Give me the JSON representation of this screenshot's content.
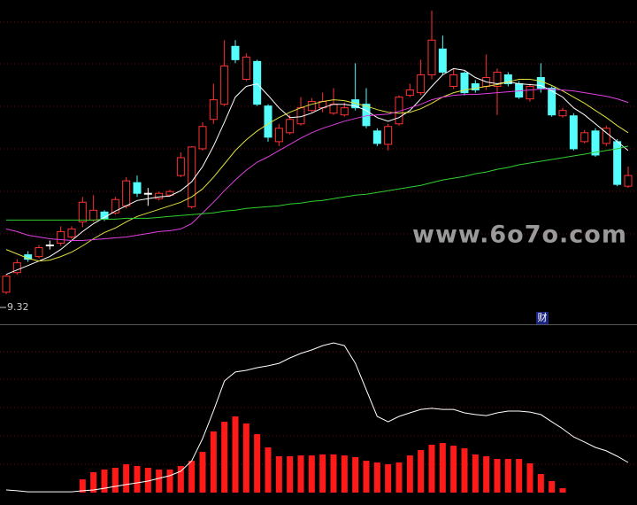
{
  "chart_data": [
    {
      "type": "candlestick",
      "up_color": "#ff3232",
      "down_color": "#54fcfc",
      "flat_color": "#ffffff",
      "ylim": [
        9.0,
        12.6
      ],
      "low_label": 9.32,
      "marker_label": "财",
      "open": [
        9.32,
        9.54,
        9.74,
        9.72,
        9.85,
        9.87,
        9.94,
        10.11,
        10.13,
        10.22,
        10.21,
        10.29,
        10.55,
        10.43,
        10.37,
        10.41,
        10.63,
        10.28,
        10.93,
        11.26,
        11.43,
        12.08,
        11.71,
        11.91,
        11.41,
        11.01,
        11.11,
        11.21,
        11.36,
        11.39,
        11.33,
        11.31,
        11.48,
        11.43,
        11.13,
        10.98,
        11.21,
        11.53,
        11.56,
        11.76,
        12.05,
        11.63,
        11.78,
        11.66,
        11.63,
        11.63,
        11.76,
        11.66,
        11.49,
        11.73,
        11.61,
        11.3,
        11.3,
        11.01,
        11.13,
        10.99,
        11.01,
        10.51
      ],
      "high": [
        9.52,
        9.69,
        9.78,
        9.85,
        9.9,
        10.06,
        10.06,
        10.39,
        10.41,
        10.24,
        10.39,
        10.61,
        10.63,
        10.49,
        10.45,
        10.47,
        10.89,
        10.96,
        11.23,
        11.66,
        12.15,
        12.15,
        12.0,
        11.93,
        11.43,
        11.21,
        11.31,
        11.51,
        11.5,
        11.56,
        11.61,
        11.45,
        11.89,
        11.61,
        11.16,
        11.21,
        11.53,
        11.66,
        11.93,
        12.48,
        12.2,
        11.83,
        11.8,
        11.7,
        11.99,
        11.83,
        11.79,
        11.69,
        11.66,
        11.89,
        11.63,
        11.39,
        11.33,
        11.14,
        11.16,
        11.19,
        11.04,
        10.73
      ],
      "low": [
        9.3,
        9.52,
        9.66,
        9.7,
        9.8,
        9.84,
        9.92,
        10.05,
        10.11,
        10.12,
        10.19,
        10.26,
        10.39,
        10.29,
        10.35,
        10.39,
        10.61,
        10.26,
        10.91,
        11.21,
        11.41,
        11.89,
        11.69,
        11.41,
        11.01,
        10.96,
        11.09,
        11.19,
        11.34,
        11.34,
        11.31,
        11.29,
        11.36,
        11.16,
        10.96,
        10.91,
        11.19,
        11.51,
        11.53,
        11.71,
        11.76,
        11.6,
        11.53,
        11.56,
        11.59,
        11.31,
        11.63,
        11.49,
        11.46,
        11.56,
        11.29,
        11.28,
        10.91,
        10.99,
        10.84,
        10.96,
        10.51,
        10.49
      ],
      "close": [
        9.5,
        9.65,
        9.69,
        9.82,
        9.85,
        10.0,
        10.03,
        10.33,
        10.24,
        10.14,
        10.36,
        10.57,
        10.43,
        10.43,
        10.43,
        10.45,
        10.83,
        10.95,
        11.18,
        11.48,
        11.86,
        11.93,
        11.96,
        11.43,
        11.06,
        11.16,
        11.26,
        11.39,
        11.46,
        11.46,
        11.43,
        11.39,
        11.39,
        11.19,
        10.99,
        11.18,
        11.51,
        11.59,
        11.76,
        12.15,
        11.79,
        11.76,
        11.56,
        11.59,
        11.73,
        11.79,
        11.66,
        11.51,
        11.63,
        11.61,
        11.31,
        11.36,
        10.93,
        11.11,
        10.86,
        11.16,
        10.53,
        10.63
      ],
      "series": [
        {
          "color": "#ffffff",
          "values": [
            9.52,
            9.57,
            9.62,
            9.67,
            9.72,
            9.8,
            9.9,
            10.0,
            10.09,
            10.16,
            10.23,
            10.29,
            10.35,
            10.37,
            10.39,
            10.4,
            10.46,
            10.56,
            10.73,
            10.96,
            11.23,
            11.51,
            11.63,
            11.66,
            11.53,
            11.39,
            11.28,
            11.29,
            11.33,
            11.39,
            11.43,
            11.43,
            11.41,
            11.36,
            11.28,
            11.24,
            11.28,
            11.36,
            11.49,
            11.63,
            11.76,
            11.83,
            11.81,
            11.73,
            11.68,
            11.66,
            11.68,
            11.66,
            11.65,
            11.64,
            11.58,
            11.51,
            11.39,
            11.31,
            11.21,
            11.11,
            11.01,
            10.91
          ]
        },
        {
          "color": "#e0e040",
          "values": [
            9.8,
            9.75,
            9.7,
            9.67,
            9.68,
            9.72,
            9.77,
            9.84,
            9.92,
            9.99,
            10.04,
            10.11,
            10.17,
            10.21,
            10.25,
            10.29,
            10.33,
            10.39,
            10.48,
            10.61,
            10.76,
            10.91,
            11.03,
            11.13,
            11.21,
            11.28,
            11.34,
            11.39,
            11.43,
            11.46,
            11.48,
            11.47,
            11.44,
            11.41,
            11.37,
            11.34,
            11.33,
            11.34,
            11.38,
            11.44,
            11.51,
            11.56,
            11.59,
            11.61,
            11.63,
            11.65,
            11.68,
            11.71,
            11.71,
            11.69,
            11.64,
            11.58,
            11.51,
            11.44,
            11.36,
            11.28,
            11.19,
            11.11
          ]
        },
        {
          "color": "#e040e0",
          "values": [
            10.03,
            10.0,
            9.96,
            9.94,
            9.92,
            9.91,
            9.9,
            9.9,
            9.91,
            9.92,
            9.93,
            9.94,
            9.96,
            9.98,
            10.0,
            10.01,
            10.03,
            10.09,
            10.21,
            10.33,
            10.46,
            10.58,
            10.69,
            10.78,
            10.84,
            10.91,
            10.98,
            11.05,
            11.11,
            11.16,
            11.2,
            11.24,
            11.27,
            11.3,
            11.31,
            11.32,
            11.35,
            11.39,
            11.43,
            11.48,
            11.51,
            11.53,
            11.54,
            11.54,
            11.55,
            11.56,
            11.57,
            11.58,
            11.59,
            11.6,
            11.6,
            11.59,
            11.58,
            11.56,
            11.54,
            11.52,
            11.49,
            11.45
          ]
        },
        {
          "color": "#30d030",
          "values": [
            10.13,
            10.13,
            10.13,
            10.13,
            10.13,
            10.13,
            10.13,
            10.13,
            10.13,
            10.14,
            10.14,
            10.15,
            10.15,
            10.15,
            10.16,
            10.17,
            10.18,
            10.19,
            10.2,
            10.21,
            10.23,
            10.24,
            10.26,
            10.27,
            10.28,
            10.29,
            10.31,
            10.32,
            10.34,
            10.35,
            10.37,
            10.39,
            10.41,
            10.42,
            10.44,
            10.46,
            10.48,
            10.5,
            10.52,
            10.55,
            10.58,
            10.6,
            10.62,
            10.65,
            10.67,
            10.7,
            10.72,
            10.75,
            10.77,
            10.79,
            10.81,
            10.83,
            10.85,
            10.87,
            10.89,
            10.91,
            10.93,
            10.96
          ]
        }
      ]
    },
    {
      "type": "bar",
      "ylim": [
        0,
        100
      ],
      "series": [
        {
          "type": "bar",
          "color": "#ff1a1a",
          "values": [
            null,
            null,
            null,
            null,
            null,
            null,
            null,
            7.9,
            12.2,
            13.8,
            14.8,
            16.9,
            15.9,
            14.8,
            13.8,
            13.8,
            15.9,
            19.0,
            24.3,
            36.5,
            42.3,
            45.5,
            41.3,
            34.9,
            27.0,
            21.7,
            21.7,
            22.2,
            22.2,
            22.8,
            22.8,
            22.2,
            21.2,
            19.0,
            18.0,
            16.9,
            18.0,
            22.2,
            25.4,
            28.6,
            29.6,
            28.0,
            26.5,
            22.8,
            21.7,
            20.1,
            20.1,
            20.1,
            17.5,
            11.1,
            6.9,
            2.6,
            null,
            null,
            null,
            null,
            null,
            null
          ]
        },
        {
          "type": "line",
          "color": "#ffffff",
          "values": [
            1.6,
            1.1,
            0.5,
            0.5,
            0.5,
            0.5,
            0.5,
            1.1,
            1.6,
            2.6,
            3.7,
            4.8,
            5.8,
            6.9,
            8.5,
            10.1,
            12.7,
            19.0,
            32.3,
            48.8,
            66.7,
            72.0,
            73.0,
            74.6,
            75.7,
            77.2,
            80.4,
            83.1,
            85.2,
            87.8,
            89.4,
            87.8,
            77.2,
            61.4,
            45.5,
            42.3,
            45.5,
            47.6,
            49.7,
            50.3,
            49.7,
            49.7,
            47.6,
            46.6,
            46.0,
            47.6,
            48.7,
            48.7,
            48.1,
            46.6,
            42.3,
            38.1,
            33.3,
            30.2,
            27.0,
            24.9,
            21.7,
            18.0
          ]
        }
      ]
    }
  ],
  "watermark": "www.6o7o.com"
}
